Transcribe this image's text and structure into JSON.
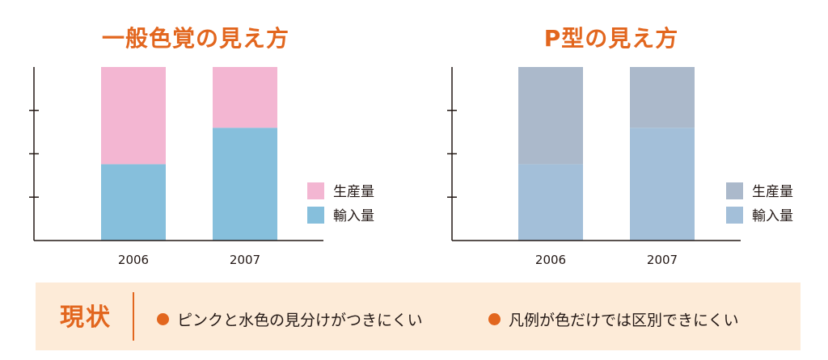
{
  "chart_data": [
    {
      "type": "bar",
      "stacked": true,
      "title": "一般色覚の見え方",
      "categories": [
        "2006",
        "2007"
      ],
      "series": [
        {
          "name": "輸入量",
          "color": "#86bfdc",
          "values": [
            0.44,
            0.65
          ]
        },
        {
          "name": "生産量",
          "color": "#f3b6d2",
          "values": [
            0.56,
            0.35
          ]
        }
      ],
      "yticks_count": 3,
      "ylim": [
        0,
        1
      ],
      "legend": "right"
    },
    {
      "type": "bar",
      "stacked": true,
      "title": "P型の見え方",
      "categories": [
        "2006",
        "2007"
      ],
      "series": [
        {
          "name": "輸入量",
          "color": "#a3bfd9",
          "values": [
            0.44,
            0.65
          ]
        },
        {
          "name": "生産量",
          "color": "#abb9cb",
          "values": [
            0.56,
            0.35
          ]
        }
      ],
      "yticks_count": 3,
      "ylim": [
        0,
        1
      ],
      "legend": "right"
    }
  ],
  "footer": {
    "label": "現状",
    "bullets": [
      "ピンクと水色の見分けがつきにくい",
      "凡例が色だけでは区別できにくい"
    ]
  },
  "colors": {
    "accent": "#e2661e",
    "footer_bg": "#fdebd8",
    "axis": "#231815"
  }
}
